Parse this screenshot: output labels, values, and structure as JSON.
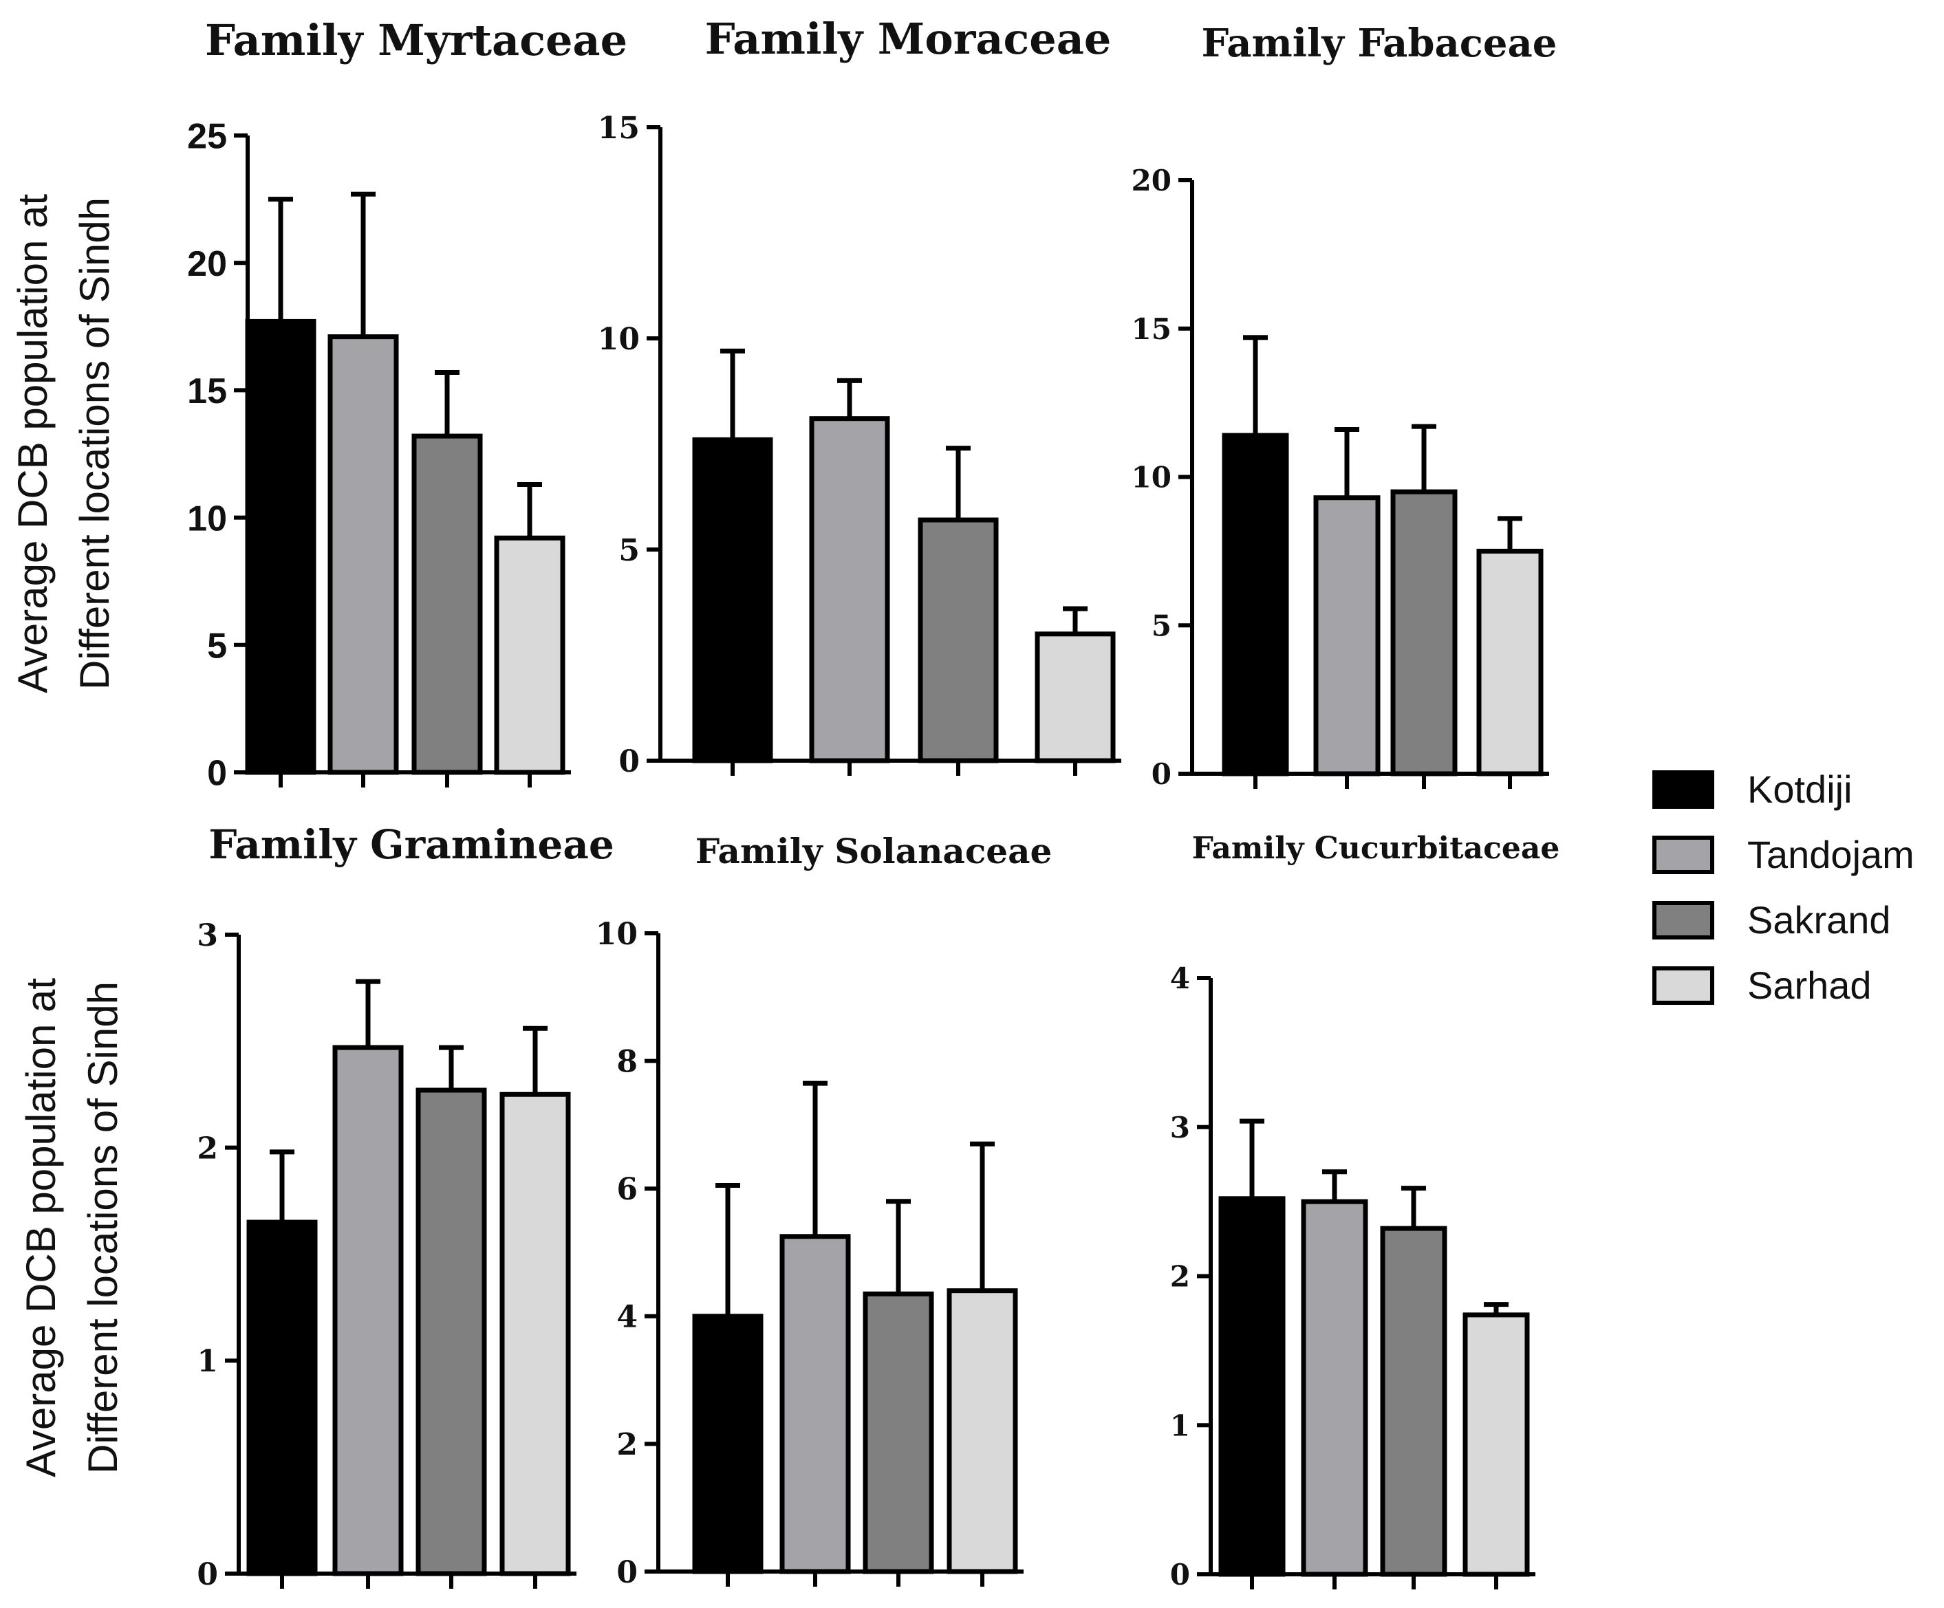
{
  "ylabel_line1": "Average  DCB population at",
  "ylabel_line2": "Different  locations of Sindh",
  "colors": {
    "Kotdiji": "#000000",
    "Tandojam": "#a4a4a8",
    "Sakrand": "#808080",
    "Sarhad": "#d9d9d9"
  },
  "legend": {
    "items": [
      {
        "label": "Kotdiji",
        "color": "#000000"
      },
      {
        "label": "Tandojam",
        "color": "#a4a4a8"
      },
      {
        "label": "Sakrand",
        "color": "#808080"
      },
      {
        "label": "Sarhad",
        "color": "#d9d9d9"
      }
    ]
  },
  "chart_data": [
    {
      "type": "bar",
      "title": "Family Myrtaceae",
      "categories": [
        "Kotdiji",
        "Tandojam",
        "Sakrand",
        "Sarhad"
      ],
      "values": [
        17.7,
        17.1,
        13.2,
        9.2
      ],
      "errors": [
        4.8,
        5.6,
        2.5,
        2.1
      ],
      "ylim": [
        0,
        25
      ],
      "yticks": [
        0,
        5,
        10,
        15,
        20,
        25
      ],
      "ylabel": "Average  DCB population at Different  locations of Sindh"
    },
    {
      "type": "bar",
      "title": "Family Moraceae",
      "categories": [
        "Kotdiji",
        "Tandojam",
        "Sakrand",
        "Sarhad"
      ],
      "values": [
        7.6,
        8.1,
        5.7,
        3.0
      ],
      "errors": [
        2.1,
        0.9,
        1.7,
        0.6
      ],
      "ylim": [
        0,
        15
      ],
      "yticks": [
        0,
        5,
        10,
        15
      ],
      "ylabel": ""
    },
    {
      "type": "bar",
      "title": "Family Fabaceae",
      "categories": [
        "Kotdiji",
        "Tandojam",
        "Sakrand",
        "Sarhad"
      ],
      "values": [
        11.4,
        9.3,
        9.5,
        7.5
      ],
      "errors": [
        3.3,
        2.3,
        2.2,
        1.1
      ],
      "ylim": [
        0,
        20
      ],
      "yticks": [
        0,
        5,
        10,
        15,
        20
      ],
      "ylabel": ""
    },
    {
      "type": "bar",
      "title": "Family Gramineae",
      "categories": [
        "Kotdiji",
        "Tandojam",
        "Sakrand",
        "Sarhad"
      ],
      "values": [
        1.65,
        2.47,
        2.27,
        2.25
      ],
      "errors": [
        0.33,
        0.31,
        0.2,
        0.31
      ],
      "ylim": [
        0,
        3
      ],
      "yticks": [
        0,
        1,
        2,
        3
      ],
      "ylabel": "Average  DCB population at Different  locations of Sindh"
    },
    {
      "type": "bar",
      "title": "Family Solanaceae",
      "categories": [
        "Kotdiji",
        "Tandojam",
        "Sakrand",
        "Sarhad"
      ],
      "values": [
        4.0,
        5.25,
        4.35,
        4.4
      ],
      "errors": [
        2.05,
        2.4,
        1.45,
        2.3
      ],
      "ylim": [
        0,
        10
      ],
      "yticks": [
        0,
        2,
        4,
        6,
        8,
        10
      ],
      "ylabel": ""
    },
    {
      "type": "bar",
      "title": "Family Cucurbitaceae",
      "categories": [
        "Kotdiji",
        "Tandojam",
        "Sakrand",
        "Sarhad"
      ],
      "values": [
        2.52,
        2.5,
        2.32,
        1.74
      ],
      "errors": [
        0.52,
        0.2,
        0.27,
        0.07
      ],
      "ylim": [
        0,
        4
      ],
      "yticks": [
        0,
        1,
        2,
        3,
        4
      ],
      "ylabel": ""
    }
  ]
}
